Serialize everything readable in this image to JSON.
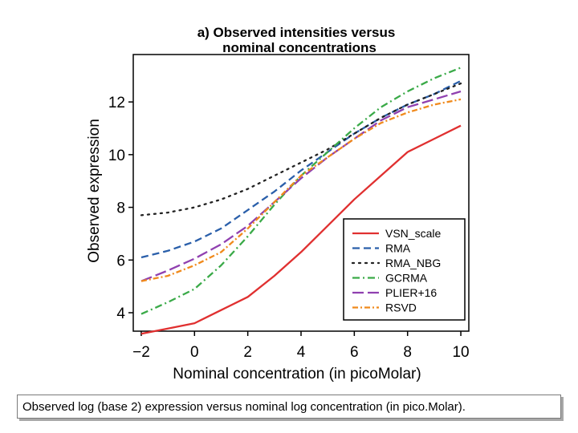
{
  "chart_data": {
    "type": "line",
    "title": "a) Observed intensities versus nominal concentrations",
    "title_lines": [
      "a) Observed intensities versus",
      "nominal concentrations"
    ],
    "xlabel": "Nominal concentration (in picoMolar)",
    "ylabel": "Observed expression",
    "xlim": [
      -2.3,
      10.3
    ],
    "ylim": [
      3.3,
      13.8
    ],
    "xticks": [
      -2,
      0,
      2,
      4,
      6,
      8,
      10
    ],
    "xtick_labels": [
      "−2",
      "0",
      "2",
      "4",
      "6",
      "8",
      "10"
    ],
    "yticks": [
      4,
      6,
      8,
      10,
      12
    ],
    "ytick_labels": [
      "4",
      "6",
      "8",
      "10",
      "12"
    ],
    "grid": false,
    "legend_position": "bottom-right",
    "x": [
      -2,
      -1,
      0,
      1,
      2,
      3,
      4,
      5,
      6,
      7,
      8,
      9,
      10
    ],
    "series": [
      {
        "name": "VSN_scale",
        "color": "#e03030",
        "dash": "solid",
        "values": [
          3.2,
          3.4,
          3.6,
          4.1,
          4.6,
          5.4,
          6.3,
          7.3,
          8.3,
          9.2,
          10.1,
          10.6,
          11.1
        ]
      },
      {
        "name": "RMA",
        "color": "#2a5faa",
        "dash": "dashed",
        "values": [
          6.1,
          6.35,
          6.7,
          7.2,
          7.9,
          8.6,
          9.4,
          10.1,
          10.8,
          11.4,
          11.9,
          12.3,
          12.8
        ]
      },
      {
        "name": "RMA_NBG",
        "color": "#222222",
        "dash": "dotted",
        "values": [
          7.7,
          7.8,
          8.0,
          8.3,
          8.7,
          9.2,
          9.7,
          10.2,
          10.8,
          11.4,
          11.9,
          12.3,
          12.7
        ]
      },
      {
        "name": "GCRMA",
        "color": "#3aaa48",
        "dash": "dashdot",
        "values": [
          3.95,
          4.4,
          4.9,
          5.8,
          6.9,
          8.1,
          9.2,
          10.1,
          11.0,
          11.8,
          12.4,
          12.9,
          13.3
        ]
      },
      {
        "name": "PLIER+16",
        "color": "#9040b0",
        "dash": "longdash",
        "values": [
          5.2,
          5.6,
          6.05,
          6.6,
          7.3,
          8.2,
          9.1,
          9.9,
          10.6,
          11.3,
          11.8,
          12.1,
          12.4
        ]
      },
      {
        "name": "RSVD",
        "color": "#f08a1c",
        "dash": "dashdot2",
        "values": [
          5.2,
          5.4,
          5.8,
          6.3,
          7.2,
          8.2,
          9.2,
          9.9,
          10.6,
          11.2,
          11.6,
          11.9,
          12.1
        ]
      }
    ]
  },
  "caption": "Observed log (base 2) expression versus nominal log concentration (in pico.Molar)."
}
